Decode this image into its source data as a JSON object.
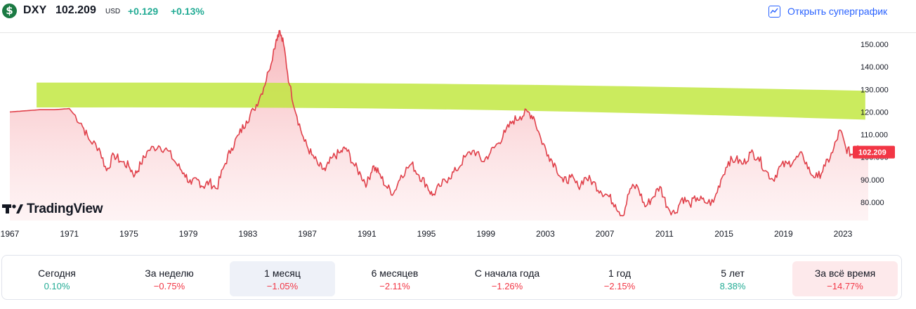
{
  "header": {
    "logo_glyph": "$",
    "symbol": "DXY",
    "price": "102.209",
    "currency": "USD",
    "change": "+0.129",
    "change_percent": "+0.13%",
    "supergraph_label": "Открыть суперграфик",
    "supergraph_icon": "chart-line-icon"
  },
  "brand": {
    "name": "TradingView"
  },
  "colors": {
    "up": "#22ab94",
    "down": "#f23645",
    "line": "#e0404a",
    "highlight": "#bfe63a",
    "active_tab": "#eef1f8",
    "alltime_tab": "#fde9eb"
  },
  "periods": [
    {
      "label": "Сегодня",
      "value": "0.10%",
      "dir": "up"
    },
    {
      "label": "За неделю",
      "value": "−0.75%",
      "dir": "down"
    },
    {
      "label": "1 месяц",
      "value": "−1.05%",
      "dir": "down",
      "active": true
    },
    {
      "label": "6 месяцев",
      "value": "−2.11%",
      "dir": "down"
    },
    {
      "label": "С начала года",
      "value": "−1.26%",
      "dir": "down"
    },
    {
      "label": "1 год",
      "value": "−2.15%",
      "dir": "down"
    },
    {
      "label": "5 лет",
      "value": "8.38%",
      "dir": "up"
    },
    {
      "label": "За всё время",
      "value": "−14.77%",
      "dir": "down",
      "alltime": true
    }
  ],
  "chart_data": {
    "type": "area",
    "x_ticks": [
      "1967",
      "1971",
      "1975",
      "1979",
      "1983",
      "1987",
      "1991",
      "1995",
      "1999",
      "2003",
      "2007",
      "2011",
      "2015",
      "2019",
      "2023"
    ],
    "y_ticks": [
      "80.000",
      "90.000",
      "100.000",
      "110.000",
      "120.000",
      "130.000",
      "140.000",
      "150.000"
    ],
    "y_range": [
      73,
      156
    ],
    "x_range": [
      1967,
      2024.8
    ],
    "last_value_label": "102.209",
    "highlight_band": {
      "from_year": 1968.8,
      "to_year": 2024.5,
      "from_value": 120,
      "to_value": 132
    },
    "series": [
      {
        "values": [
          [
            1967.0,
            120
          ],
          [
            1968.0,
            120.5
          ],
          [
            1969.0,
            121
          ],
          [
            1970.0,
            121
          ],
          [
            1971.0,
            121.5
          ],
          [
            1971.8,
            115
          ],
          [
            1972.3,
            108
          ],
          [
            1973.0,
            104
          ],
          [
            1973.5,
            94
          ],
          [
            1974.0,
            101
          ],
          [
            1974.5,
            98
          ],
          [
            1975.0,
            96
          ],
          [
            1975.4,
            92
          ],
          [
            1975.8,
            97
          ],
          [
            1976.3,
            103
          ],
          [
            1977.0,
            105
          ],
          [
            1977.6,
            103
          ],
          [
            1978.2,
            97
          ],
          [
            1978.7,
            93
          ],
          [
            1979.2,
            88
          ],
          [
            1979.6,
            90
          ],
          [
            1980.0,
            87
          ],
          [
            1980.4,
            89
          ],
          [
            1980.9,
            86
          ],
          [
            1981.4,
            96
          ],
          [
            1981.9,
            104
          ],
          [
            1982.4,
            110
          ],
          [
            1982.9,
            116
          ],
          [
            1983.4,
            121
          ],
          [
            1983.9,
            128
          ],
          [
            1984.4,
            138
          ],
          [
            1984.9,
            152
          ],
          [
            1985.1,
            156
          ],
          [
            1985.4,
            150
          ],
          [
            1985.8,
            132
          ],
          [
            1986.3,
            118
          ],
          [
            1986.8,
            107
          ],
          [
            1987.3,
            101
          ],
          [
            1987.8,
            96
          ],
          [
            1988.2,
            94
          ],
          [
            1988.7,
            100
          ],
          [
            1989.2,
            102
          ],
          [
            1989.6,
            104
          ],
          [
            1990.1,
            97
          ],
          [
            1990.6,
            92
          ],
          [
            1991.0,
            88
          ],
          [
            1991.4,
            96
          ],
          [
            1991.8,
            93
          ],
          [
            1992.3,
            87
          ],
          [
            1992.8,
            84
          ],
          [
            1993.3,
            92
          ],
          [
            1994.0,
            97
          ],
          [
            1994.5,
            92
          ],
          [
            1995.0,
            88
          ],
          [
            1995.4,
            83
          ],
          [
            1995.9,
            87
          ],
          [
            1996.5,
            91
          ],
          [
            1997.0,
            94
          ],
          [
            1997.6,
            100
          ],
          [
            1998.2,
            103
          ],
          [
            1998.8,
            98
          ],
          [
            1999.3,
            102
          ],
          [
            1999.8,
            106
          ],
          [
            2000.3,
            111
          ],
          [
            2000.8,
            116
          ],
          [
            2001.3,
            118
          ],
          [
            2001.8,
            120
          ],
          [
            2002.2,
            118
          ],
          [
            2002.7,
            108
          ],
          [
            2003.2,
            101
          ],
          [
            2003.7,
            96
          ],
          [
            2004.2,
            89
          ],
          [
            2004.7,
            91
          ],
          [
            2005.2,
            87
          ],
          [
            2005.7,
            91
          ],
          [
            2006.2,
            89
          ],
          [
            2006.7,
            85
          ],
          [
            2007.2,
            83
          ],
          [
            2007.7,
            79
          ],
          [
            2008.2,
            74
          ],
          [
            2008.7,
            86
          ],
          [
            2009.2,
            87
          ],
          [
            2009.7,
            78
          ],
          [
            2010.2,
            82
          ],
          [
            2010.7,
            87
          ],
          [
            2011.2,
            78
          ],
          [
            2011.7,
            75
          ],
          [
            2012.2,
            82
          ],
          [
            2012.7,
            79
          ],
          [
            2013.2,
            82
          ],
          [
            2013.7,
            80
          ],
          [
            2014.3,
            80
          ],
          [
            2014.8,
            90
          ],
          [
            2015.3,
            98
          ],
          [
            2015.8,
            99
          ],
          [
            2016.3,
            97
          ],
          [
            2016.8,
            102
          ],
          [
            2017.3,
            100
          ],
          [
            2017.8,
            94
          ],
          [
            2018.3,
            90
          ],
          [
            2018.8,
            96
          ],
          [
            2019.3,
            97
          ],
          [
            2019.8,
            99
          ],
          [
            2020.3,
            101
          ],
          [
            2020.8,
            93
          ],
          [
            2021.3,
            91
          ],
          [
            2021.8,
            96
          ],
          [
            2022.3,
            102
          ],
          [
            2022.8,
            112
          ],
          [
            2023.2,
            104
          ],
          [
            2023.6,
            101
          ],
          [
            2024.0,
            105
          ],
          [
            2024.4,
            103
          ],
          [
            2024.7,
            102.2
          ]
        ]
      }
    ]
  }
}
